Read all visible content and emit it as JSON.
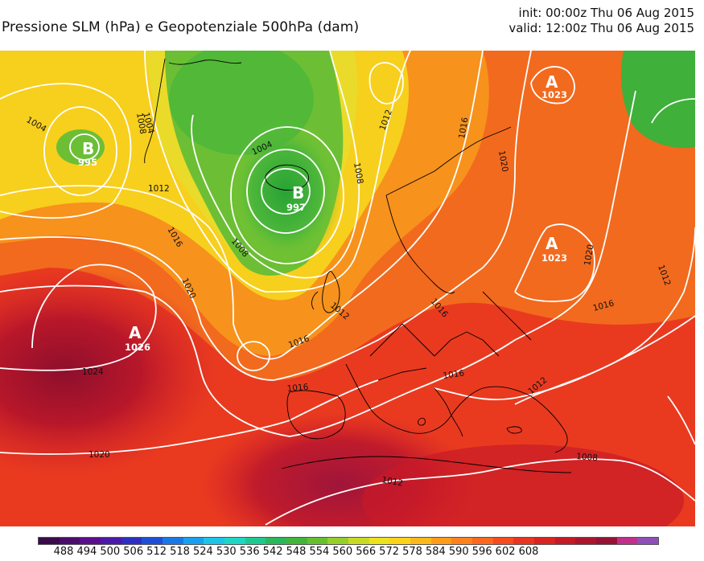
{
  "header": {
    "title": "Pressione SLM (hPa) e Geopotenziale 500hPa (dam)",
    "init": "init: 00:00z Thu 06 Aug 2015",
    "valid": "valid: 12:00z Thu 06 Aug 2015"
  },
  "pressure_centers": [
    {
      "letter": "B",
      "value": "995"
    },
    {
      "letter": "B",
      "value": "997"
    },
    {
      "letter": "A",
      "value": "1026"
    },
    {
      "letter": "A",
      "value": "1023"
    },
    {
      "letter": "A",
      "value": "1023"
    }
  ],
  "isobar_labels": [
    "1004",
    "1004",
    "1004",
    "1008",
    "1008",
    "1008",
    "1012",
    "1012",
    "1012",
    "1012",
    "1012",
    "1012",
    "1016",
    "1016",
    "1016",
    "1016",
    "1016",
    "1016",
    "1016",
    "1020",
    "1020",
    "1020",
    "1020",
    "1024",
    "1008"
  ],
  "colorbar": {
    "labels": [
      "488",
      "494",
      "500",
      "506",
      "512",
      "518",
      "524",
      "530",
      "536",
      "542",
      "548",
      "554",
      "560",
      "566",
      "572",
      "578",
      "584",
      "590",
      "596",
      "602",
      "608"
    ],
    "colors": [
      "#3a0a4a",
      "#4b0c6b",
      "#5a0f8c",
      "#4a1aa8",
      "#2e2ec2",
      "#1e4fd6",
      "#1a78e6",
      "#18a0ef",
      "#1ec4e8",
      "#1fd6c4",
      "#1ec98f",
      "#2bb85a",
      "#43b53a",
      "#67c02f",
      "#96cf2a",
      "#c8db24",
      "#eee21d",
      "#ffd21a",
      "#ffb81a",
      "#ff9c1a",
      "#ff821c",
      "#ff681e",
      "#f74c1f",
      "#ea3420",
      "#d9241f",
      "#c41a25",
      "#ad152c",
      "#971234",
      "#c0308a",
      "#8e4fb8"
    ]
  },
  "colors": {
    "high_red": "#d4202a",
    "orange": "#f08a1e",
    "yellow": "#f9d61c",
    "green": "#4cb63a",
    "isobar": "#ffffff",
    "coastline": "#000000"
  }
}
